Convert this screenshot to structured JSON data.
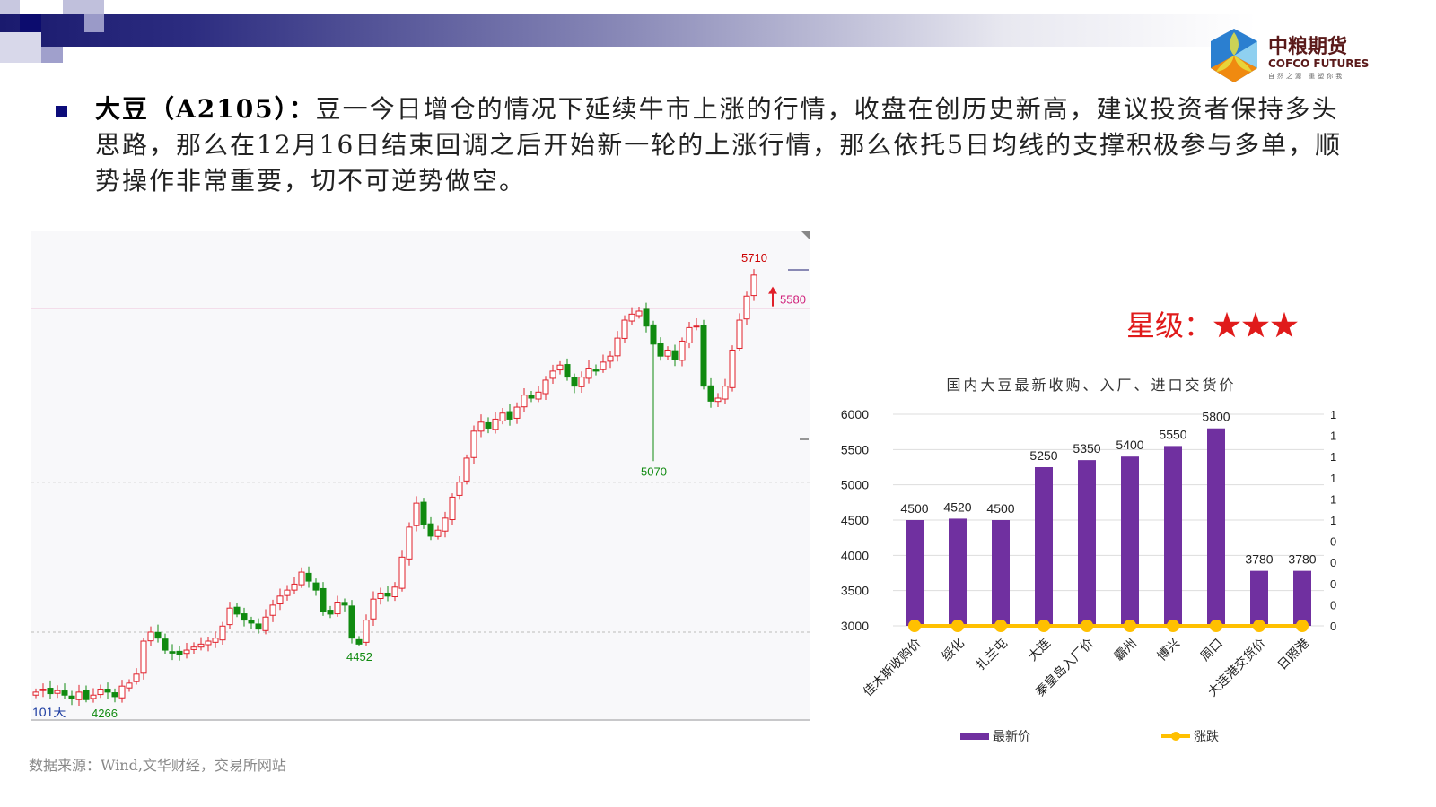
{
  "header": {
    "logo_cn": "中粮期货",
    "logo_en": "COFCO FUTURES",
    "logo_sub": "自然之源 重塑你我"
  },
  "commentary": {
    "bold": "大豆（A2105）：",
    "text": "豆一今日增仓的情况下延续牛市上涨的行情，收盘在创历史新高，建议投资者保持多头思路，那么在12月16日结束回调之后开始新一轮的上涨行情，那么依托5日均线的支撑积极参与多单，顺势操作非常重要，切不可逆势做空。"
  },
  "rating": {
    "label": "星级：",
    "stars": "★★★",
    "color": "#e01b1b"
  },
  "source": "数据来源：Wind,文华财经，交易所网站",
  "chart_data": [
    {
      "type": "candlestick",
      "days_label": "101天",
      "up_color": "#e0202a",
      "down_color": "#108a10",
      "close": [
        4300,
        4310,
        4295,
        4305,
        4290,
        4280,
        4300,
        4275,
        4290,
        4310,
        4300,
        4285,
        4320,
        4330,
        4360,
        4470,
        4500,
        4480,
        4440,
        4430,
        4425,
        4440,
        4450,
        4460,
        4470,
        4480,
        4520,
        4580,
        4560,
        4540,
        4530,
        4510,
        4550,
        4590,
        4620,
        4640,
        4660,
        4700,
        4670,
        4640,
        4570,
        4560,
        4600,
        4590,
        4480,
        4460,
        4540,
        4610,
        4630,
        4620,
        4650,
        4750,
        4850,
        4930,
        4860,
        4820,
        4840,
        4880,
        4950,
        5000,
        5080,
        5170,
        5200,
        5180,
        5210,
        5230,
        5210,
        5250,
        5290,
        5280,
        5300,
        5340,
        5370,
        5390,
        5350,
        5320,
        5350,
        5380,
        5370,
        5400,
        5420,
        5480,
        5540,
        5560,
        5570,
        5520,
        5460,
        5420,
        5440,
        5410,
        5470,
        5515,
        5520,
        5320,
        5270,
        5280,
        5320,
        5440,
        5540,
        5620,
        5690
      ],
      "annotations": [
        {
          "index": 100,
          "type": "high",
          "value": 5710
        },
        {
          "index": 86,
          "type": "low",
          "value": 5070
        },
        {
          "index": 45,
          "type": "low",
          "value": 4452
        },
        {
          "index": 7,
          "type": "low",
          "value": 4266
        }
      ],
      "hline": {
        "value": 5580,
        "label": "5580",
        "color": "#d0207a"
      },
      "grid_values": [
        5000,
        4500
      ],
      "ylim": [
        4204,
        5836
      ]
    },
    {
      "type": "bar+line",
      "title": "国内大豆最新收购、入厂、进口交货价",
      "categories": [
        "佳木斯收购价",
        "绥化",
        "扎兰屯",
        "大连",
        "秦皇岛入厂价",
        "霸州",
        "博兴",
        "周口",
        "大连港交货价",
        "日照港"
      ],
      "series": [
        {
          "name": "最新价",
          "type": "bar",
          "color": "#7030a0",
          "values": [
            4500,
            4520,
            4500,
            5250,
            5350,
            5400,
            5550,
            5800,
            3780,
            3780
          ]
        },
        {
          "name": "涨跌",
          "type": "line",
          "color": "#ffc000",
          "axis": "right",
          "values": [
            0,
            0,
            0,
            0,
            0,
            0,
            0,
            0,
            0,
            0
          ]
        }
      ],
      "ylim": [
        3000,
        6000
      ],
      "yticks": [
        "6000",
        "5500",
        "5000",
        "4500",
        "4000",
        "3500",
        "3000"
      ],
      "y2ticks": [
        "1",
        "1",
        "1",
        "1",
        "1",
        "1",
        "0",
        "0",
        "0",
        "0",
        "0"
      ],
      "legend": "bottom",
      "grid": true
    }
  ]
}
